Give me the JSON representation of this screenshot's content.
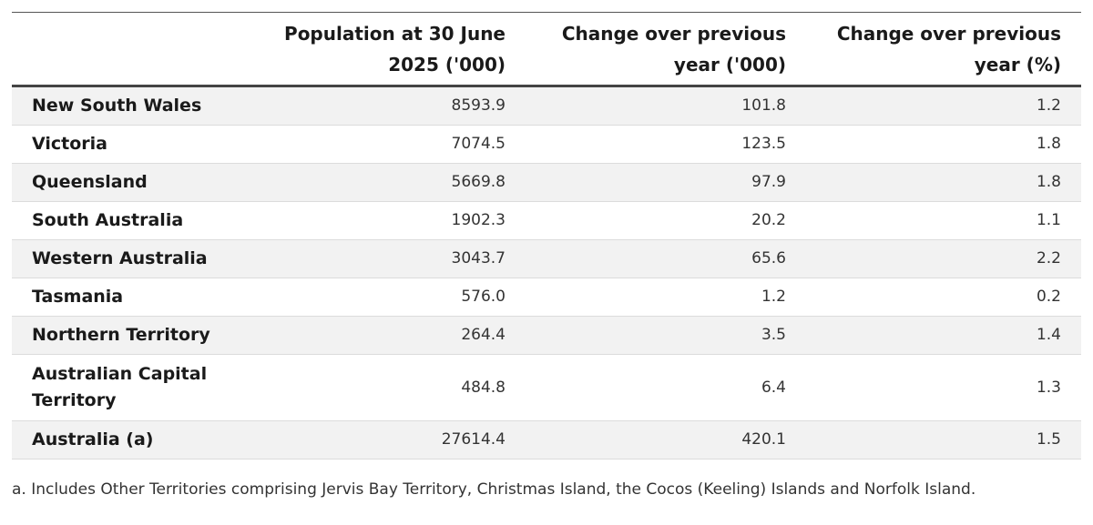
{
  "table": {
    "headers": [
      "",
      "Population at 30 June 2025 ('000)",
      "Change over previous year ('000)",
      "Change over previous year (%)"
    ],
    "rows": [
      {
        "region": "New South Wales",
        "population": "8593.9",
        "change_000": "101.8",
        "change_pct": "1.2"
      },
      {
        "region": "Victoria",
        "population": "7074.5",
        "change_000": "123.5",
        "change_pct": "1.8"
      },
      {
        "region": "Queensland",
        "population": "5669.8",
        "change_000": "97.9",
        "change_pct": "1.8"
      },
      {
        "region": "South Australia",
        "population": "1902.3",
        "change_000": "20.2",
        "change_pct": "1.1"
      },
      {
        "region": "Western Australia",
        "population": "3043.7",
        "change_000": "65.6",
        "change_pct": "2.2"
      },
      {
        "region": "Tasmania",
        "population": "576.0",
        "change_000": "1.2",
        "change_pct": "0.2"
      },
      {
        "region": "Northern Territory",
        "population": "264.4",
        "change_000": "3.5",
        "change_pct": "1.4"
      },
      {
        "region": "Australian Capital Territory",
        "population": "484.8",
        "change_000": "6.4",
        "change_pct": "1.3"
      },
      {
        "region": "Australia (a)",
        "population": "27614.4",
        "change_000": "420.1",
        "change_pct": "1.5"
      }
    ]
  },
  "footnote": "a. Includes Other Territories comprising Jervis Bay Territory, Christmas Island, the Cocos (Keeling) Islands and Norfolk Island."
}
